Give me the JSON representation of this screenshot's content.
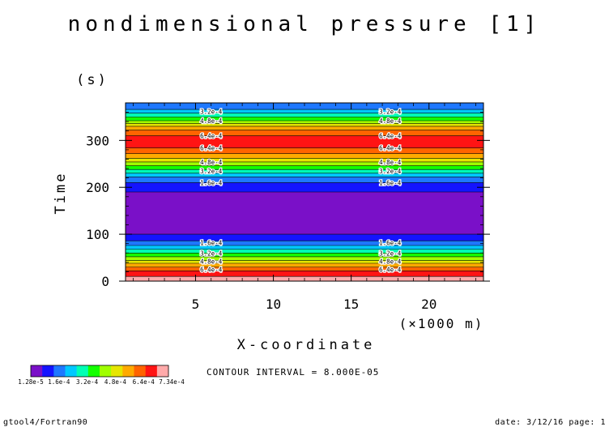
{
  "chart_data": {
    "type": "heatmap",
    "title": "nondimensional pressure [1]",
    "xlabel": "X-coordinate",
    "xunit": "(×1000 m)",
    "ylabel": "Time",
    "yunit": "(s)",
    "xlim": [
      0.5,
      23.5
    ],
    "ylim": [
      0,
      380
    ],
    "xticks": [
      5,
      10,
      15,
      20
    ],
    "yticks": [
      0,
      100,
      200,
      300
    ],
    "contour_interval_text": "CONTOUR INTERVAL = 8.000E-05",
    "colorbar": {
      "colors": [
        "#7a10c8",
        "#1414ff",
        "#1e78ff",
        "#00c8ff",
        "#00ffb4",
        "#14ff00",
        "#a0ff00",
        "#e6e600",
        "#ffaa00",
        "#ff6400",
        "#ff1414",
        "#ffaaaa"
      ],
      "labels": [
        "1.28e-5",
        "1.6e-4",
        "3.2e-4",
        "4.8e-4",
        "6.4e-4",
        "7.34e-4"
      ]
    },
    "bands": [
      {
        "t0": 0,
        "t1": 10,
        "color": "#ffaaaa"
      },
      {
        "t0": 10,
        "t1": 22,
        "color": "#ff1414"
      },
      {
        "t0": 22,
        "t1": 30,
        "color": "#ff6400"
      },
      {
        "t0": 30,
        "t1": 38,
        "color": "#ffaa00"
      },
      {
        "t0": 38,
        "t1": 44,
        "color": "#e6e600"
      },
      {
        "t0": 44,
        "t1": 52,
        "color": "#a0ff00"
      },
      {
        "t0": 52,
        "t1": 60,
        "color": "#14ff00"
      },
      {
        "t0": 60,
        "t1": 68,
        "color": "#00ffb4"
      },
      {
        "t0": 68,
        "t1": 76,
        "color": "#00c8ff"
      },
      {
        "t0": 76,
        "t1": 86,
        "color": "#1e78ff"
      },
      {
        "t0": 86,
        "t1": 100,
        "color": "#1414ff"
      },
      {
        "t0": 100,
        "t1": 190,
        "color": "#7a10c8"
      },
      {
        "t0": 190,
        "t1": 210,
        "color": "#1414ff"
      },
      {
        "t0": 210,
        "t1": 222,
        "color": "#1e78ff"
      },
      {
        "t0": 222,
        "t1": 230,
        "color": "#00c8ff"
      },
      {
        "t0": 230,
        "t1": 238,
        "color": "#00ffb4"
      },
      {
        "t0": 238,
        "t1": 246,
        "color": "#14ff00"
      },
      {
        "t0": 246,
        "t1": 254,
        "color": "#a0ff00"
      },
      {
        "t0": 254,
        "t1": 262,
        "color": "#e6e600"
      },
      {
        "t0": 262,
        "t1": 272,
        "color": "#ffaa00"
      },
      {
        "t0": 272,
        "t1": 284,
        "color": "#ff6400"
      },
      {
        "t0": 284,
        "t1": 310,
        "color": "#ff1414"
      },
      {
        "t0": 310,
        "t1": 322,
        "color": "#ff6400"
      },
      {
        "t0": 322,
        "t1": 330,
        "color": "#ffaa00"
      },
      {
        "t0": 330,
        "t1": 336,
        "color": "#e6e600"
      },
      {
        "t0": 336,
        "t1": 342,
        "color": "#a0ff00"
      },
      {
        "t0": 342,
        "t1": 350,
        "color": "#14ff00"
      },
      {
        "t0": 350,
        "t1": 358,
        "color": "#00ffb4"
      },
      {
        "t0": 358,
        "t1": 366,
        "color": "#00c8ff"
      },
      {
        "t0": 366,
        "t1": 380,
        "color": "#1e78ff"
      }
    ],
    "contour_labels": [
      {
        "t": 25,
        "text": "6.4e-4"
      },
      {
        "t": 42,
        "text": "4.8e-4"
      },
      {
        "t": 60,
        "text": "3.2e-4"
      },
      {
        "t": 82,
        "text": "1.6e-4"
      },
      {
        "t": 210,
        "text": "1.6e-4"
      },
      {
        "t": 235,
        "text": "3.2e-4"
      },
      {
        "t": 254,
        "text": "4.8e-4"
      },
      {
        "t": 284,
        "text": "6.4e-4"
      },
      {
        "t": 310,
        "text": "6.4e-4"
      },
      {
        "t": 342,
        "text": "4.8e-4"
      },
      {
        "t": 362,
        "text": "3.2e-4"
      }
    ],
    "contour_label_x": [
      6,
      17.5
    ]
  },
  "footer": {
    "left": "gtool4/Fortran90",
    "right": "date: 3/12/16 page: 1"
  }
}
